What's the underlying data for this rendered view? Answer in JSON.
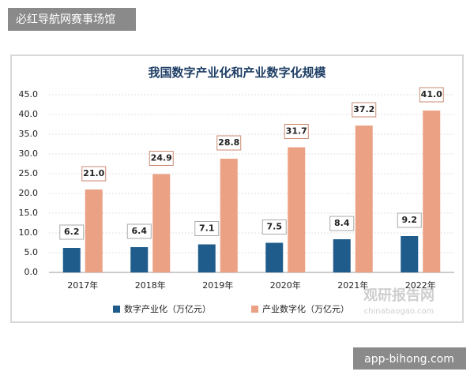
{
  "header": {
    "label": "必红导航网赛事场馆"
  },
  "chart_data": {
    "type": "bar",
    "title": "我国数字产业化和产业数字化规模",
    "categories": [
      "2017年",
      "2018年",
      "2019年",
      "2020年",
      "2021年",
      "2022年"
    ],
    "series": [
      {
        "name": "数字产业化（万亿元）",
        "color": "#1f5c8b",
        "values": [
          6.2,
          6.4,
          7.1,
          7.5,
          8.4,
          9.2
        ]
      },
      {
        "name": "产业数字化（万亿元）",
        "color": "#eba184",
        "values": [
          21,
          24.9,
          28.8,
          31.7,
          37.2,
          41
        ],
        "value_labels": [
          "21.0",
          "24.9",
          "28.8",
          "31.7",
          "37.2",
          "41.0"
        ]
      }
    ],
    "ylim": [
      0,
      45
    ],
    "yticks": [
      {
        "value": 0,
        "label": "0.0"
      },
      {
        "value": 5,
        "label": "5.0"
      },
      {
        "value": 10,
        "label": "10.0"
      },
      {
        "value": 15,
        "label": "15.0"
      },
      {
        "value": 20,
        "label": "20.0"
      },
      {
        "value": 25,
        "label": "25.0"
      },
      {
        "value": 30,
        "label": "30.0"
      },
      {
        "value": 35,
        "label": "35.0"
      },
      {
        "value": 40,
        "label": "40.0"
      },
      {
        "value": 45,
        "label": "45.0"
      }
    ],
    "grid": true,
    "legend": "bottom"
  },
  "watermark": {
    "name": "观研报告网",
    "url": "chinabaogao.com"
  },
  "footer": {
    "label": "app-bihong.com"
  }
}
